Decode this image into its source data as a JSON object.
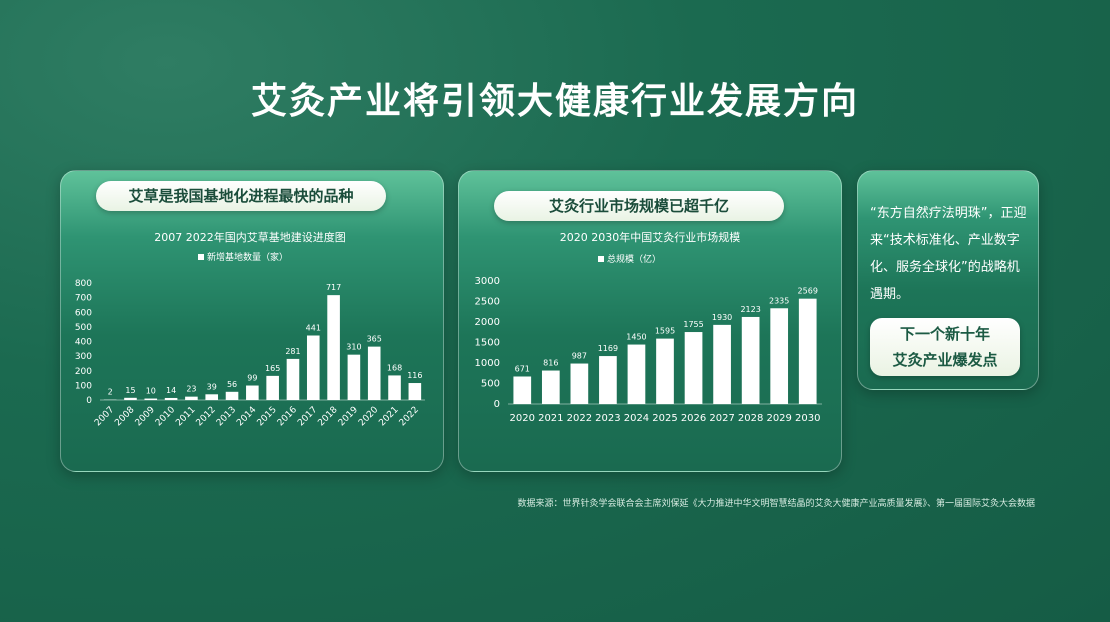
{
  "title": "艾灸产业将引领大健康行业发展方向",
  "card_headings": [
    "艾草是我国基地化进程最快的品种",
    "艾灸行业市场规模已超千亿"
  ],
  "side_panel": {
    "text": "“东方自然疗法明珠”，正迎来“技术标准化、产业数字化、服务全球化”的战略机遇期。",
    "highlight": [
      "下一个新十年",
      "艾灸产业爆发点"
    ]
  },
  "source": "数据来源：世界针灸学会联合会主席刘保延《大力推进中华文明智慧结晶的艾灸大健康产业高质量发展》、第一届国际艾灸大会数据",
  "chart_data": [
    {
      "type": "bar",
      "title": "2007 2022年国内艾草基地建设进度图",
      "categories": [
        "2007",
        "2008",
        "2009",
        "2010",
        "2011",
        "2012",
        "2013",
        "2014",
        "2015",
        "2016",
        "2017",
        "2018",
        "2019",
        "2020",
        "2021",
        "2022"
      ],
      "series": [
        {
          "name": "新增基地数量（家）",
          "color": "#ffffff",
          "values": [
            2,
            15,
            10,
            14,
            23,
            39,
            56,
            99,
            165,
            281,
            441,
            717,
            310,
            365,
            168,
            116
          ]
        }
      ],
      "ylim": [
        0,
        800
      ],
      "yticks": [
        0,
        100,
        200,
        300,
        400,
        500,
        600,
        700,
        800
      ]
    },
    {
      "type": "bar",
      "title": "2020 2030年中国艾灸行业市场规模",
      "categories": [
        "2020",
        "2021",
        "2022",
        "2023",
        "2024",
        "2025",
        "2026",
        "2027",
        "2028",
        "2029",
        "2030"
      ],
      "series": [
        {
          "name": "总规模（亿）",
          "color": "#ffffff",
          "values": [
            671,
            816,
            987,
            1169,
            1450,
            1595,
            1755,
            1930,
            2123,
            2335,
            2569
          ]
        }
      ],
      "ylim": [
        0,
        3000
      ],
      "yticks": [
        0,
        500,
        1000,
        1500,
        2000,
        2500,
        3000
      ]
    }
  ]
}
